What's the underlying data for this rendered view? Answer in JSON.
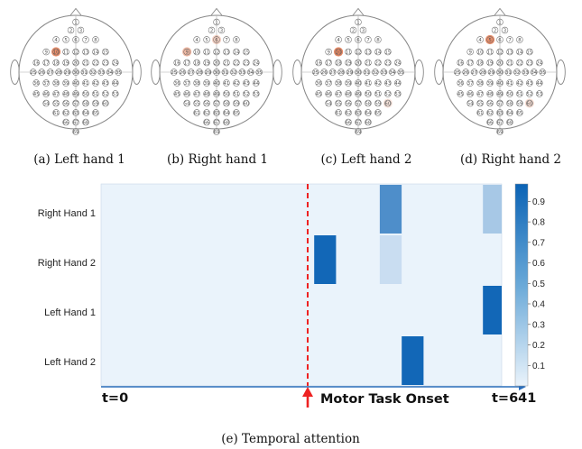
{
  "headmaps": [
    {
      "caption": "(a)  Left hand 1",
      "highlights": [
        {
          "channel": 10,
          "intensity": 0.9
        }
      ]
    },
    {
      "caption": "(b)  Right hand 1",
      "highlights": [
        {
          "channel": 9,
          "intensity": 0.55
        },
        {
          "channel": 6,
          "intensity": 0.35
        }
      ]
    },
    {
      "caption": "(c)  Left hand 2",
      "highlights": [
        {
          "channel": 10,
          "intensity": 0.95
        },
        {
          "channel": 60,
          "intensity": 0.2
        }
      ]
    },
    {
      "caption": "(d)  Right hand 2",
      "highlights": [
        {
          "channel": 5,
          "intensity": 0.9
        },
        {
          "channel": 60,
          "intensity": 0.25
        }
      ]
    }
  ],
  "heatmap_caption": "(e)  Temporal attention",
  "colors": {
    "highlight": "#e8825a",
    "onset_line": "#ee2222",
    "timeline": "#2a6ebb",
    "colormap_low": "#eaf3fb",
    "colormap_high": "#0b63b5"
  },
  "chart_data": {
    "type": "heatmap",
    "rows": [
      "Right Hand 1",
      "Right Hand 2",
      "Left Hand 1",
      "Left Hand 2"
    ],
    "x_range": [
      0,
      641
    ],
    "timeline_start_label": "t=0",
    "timeline_end_label": "t=641",
    "onset_label": "Motor Task Onset",
    "onset_t": 325,
    "background_value": 0.02,
    "cells": [
      {
        "row": "Right Hand 1",
        "t_start": 446,
        "t_end": 481,
        "value": 0.7
      },
      {
        "row": "Right Hand 1",
        "t_start": 611,
        "t_end": 646,
        "value": 0.3
      },
      {
        "row": "Right Hand 2",
        "t_start": 341,
        "t_end": 376,
        "value": 0.97
      },
      {
        "row": "Right Hand 2",
        "t_start": 446,
        "t_end": 481,
        "value": 0.15
      },
      {
        "row": "Left Hand 1",
        "t_start": 611,
        "t_end": 646,
        "value": 0.97
      },
      {
        "row": "Left Hand 2",
        "t_start": 481,
        "t_end": 516,
        "value": 0.97
      }
    ],
    "colorbar_ticks": [
      "0.1",
      "0.2",
      "0.3",
      "0.4",
      "0.5",
      "0.6",
      "0.7",
      "0.8",
      "0.9"
    ]
  }
}
